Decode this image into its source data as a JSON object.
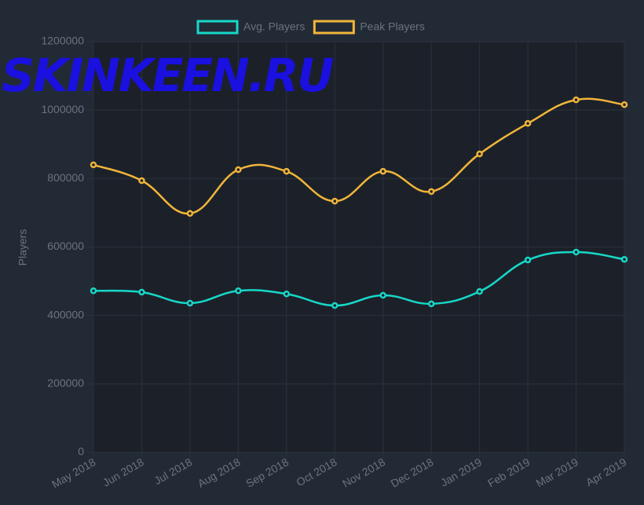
{
  "chart_data": {
    "type": "line",
    "watermark": "SKINKEEN.RU",
    "y_label": "Players",
    "categories": [
      "May 2018",
      "Jun 2018",
      "Jul 2018",
      "Aug 2018",
      "Sep 2018",
      "Oct 2018",
      "Nov 2018",
      "Dec 2018",
      "Jan 2019",
      "Feb 2019",
      "Mar 2019",
      "Apr 2019"
    ],
    "series": [
      {
        "name": "Avg. Players",
        "color": "#17d8c8",
        "values": [
          472000,
          468000,
          436000,
          472000,
          463000,
          429000,
          459000,
          434000,
          470000,
          562000,
          585000,
          564000
        ]
      },
      {
        "name": "Peak Players",
        "color": "#f1b53a",
        "values": [
          840000,
          794000,
          698000,
          826000,
          821000,
          734000,
          821000,
          762000,
          872000,
          961000,
          1030000,
          1016000
        ]
      }
    ],
    "ylim": [
      0,
      1200000
    ],
    "yticks": [
      0,
      200000,
      400000,
      600000,
      800000,
      1000000,
      1200000
    ],
    "grid": true,
    "legend": "top"
  }
}
